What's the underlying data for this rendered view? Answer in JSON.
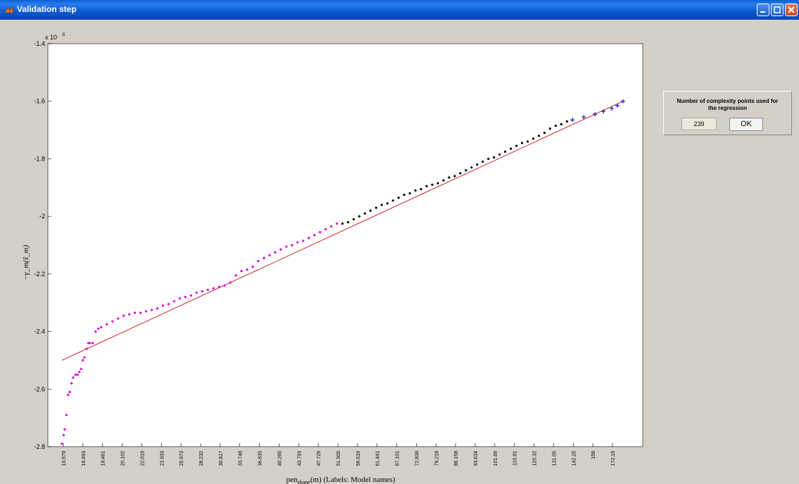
{
  "window": {
    "title": "Validation step",
    "buttons": [
      "minimize-icon",
      "maximize-icon",
      "close-icon"
    ]
  },
  "colors": {
    "titlebar": "#0a5fd6",
    "magenta_points": "#e000e0",
    "black_points": "#000000",
    "blue_points": "#1010c0",
    "regression_line": "#d02020"
  },
  "chart_data": {
    "type": "scatter",
    "y_exponent_label": "x 10",
    "y_exponent_power": "-5",
    "ylabel": "−γ_m(ŝ_m)",
    "xlabel_main": "pen",
    "xlabel_sub": "shape",
    "xlabel_rest": "(m) (Labels: Model names)",
    "ylim": [
      -2.8,
      -1.4
    ],
    "y_ticks": [
      "-1.4",
      "-1.6",
      "-1.8",
      "-2",
      "-2.2",
      "-2.4",
      "-2.6",
      "-2.8"
    ],
    "x_tick_labels": [
      "15.579",
      "16.993",
      "18.461",
      "20.102",
      "22.019",
      "23.933",
      "25.973",
      "28.232",
      "30.817",
      "33.748",
      "36.835",
      "40.265",
      "43.793",
      "47.729",
      "51.905",
      "56.616",
      "61.441",
      "67.101",
      "72.838",
      "79.218",
      "86.158",
      "93.634",
      "101.69",
      "110.81",
      "120.32",
      "131.05",
      "142.25",
      "158",
      "172.19"
    ],
    "regression_line": {
      "x_start": 0,
      "y_start": -2.5,
      "x_end": 1,
      "y_end": -1.6
    },
    "series": [
      {
        "marker": "point",
        "color": "#e000e0",
        "points": [
          [
            0.0,
            -2.79
          ],
          [
            0.003,
            -2.76
          ],
          [
            0.005,
            -2.74
          ],
          [
            0.008,
            -2.69
          ],
          [
            0.011,
            -2.62
          ],
          [
            0.014,
            -2.61
          ],
          [
            0.017,
            -2.58
          ],
          [
            0.02,
            -2.56
          ],
          [
            0.024,
            -2.55
          ],
          [
            0.028,
            -2.55
          ],
          [
            0.031,
            -2.54
          ],
          [
            0.034,
            -2.53
          ],
          [
            0.037,
            -2.5
          ],
          [
            0.04,
            -2.49
          ],
          [
            0.044,
            -2.46
          ],
          [
            0.047,
            -2.44
          ],
          [
            0.05,
            -2.44
          ],
          [
            0.055,
            -2.44
          ],
          [
            0.06,
            -2.4
          ],
          [
            0.065,
            -2.39
          ],
          [
            0.07,
            -2.385
          ],
          [
            0.08,
            -2.375
          ],
          [
            0.09,
            -2.365
          ],
          [
            0.1,
            -2.355
          ],
          [
            0.11,
            -2.345
          ],
          [
            0.12,
            -2.34
          ],
          [
            0.13,
            -2.335
          ],
          [
            0.14,
            -2.335
          ],
          [
            0.15,
            -2.33
          ],
          [
            0.16,
            -2.325
          ],
          [
            0.17,
            -2.32
          ],
          [
            0.18,
            -2.31
          ],
          [
            0.19,
            -2.305
          ],
          [
            0.2,
            -2.295
          ],
          [
            0.21,
            -2.285
          ],
          [
            0.22,
            -2.28
          ],
          [
            0.23,
            -2.275
          ],
          [
            0.24,
            -2.265
          ],
          [
            0.25,
            -2.26
          ],
          [
            0.26,
            -2.255
          ],
          [
            0.27,
            -2.25
          ],
          [
            0.28,
            -2.245
          ],
          [
            0.29,
            -2.24
          ],
          [
            0.3,
            -2.23
          ],
          [
            0.31,
            -2.205
          ],
          [
            0.32,
            -2.19
          ],
          [
            0.33,
            -2.185
          ],
          [
            0.34,
            -2.175
          ],
          [
            0.35,
            -2.155
          ],
          [
            0.36,
            -2.145
          ],
          [
            0.37,
            -2.135
          ],
          [
            0.38,
            -2.125
          ],
          [
            0.39,
            -2.115
          ],
          [
            0.4,
            -2.105
          ],
          [
            0.41,
            -2.1
          ],
          [
            0.42,
            -2.09
          ],
          [
            0.43,
            -2.085
          ],
          [
            0.44,
            -2.075
          ],
          [
            0.45,
            -2.065
          ],
          [
            0.46,
            -2.055
          ],
          [
            0.47,
            -2.045
          ],
          [
            0.48,
            -2.035
          ],
          [
            0.49,
            -2.025
          ]
        ]
      },
      {
        "marker": "point",
        "color": "#000000",
        "points": [
          [
            0.5,
            -2.025
          ],
          [
            0.51,
            -2.02
          ],
          [
            0.52,
            -2.01
          ],
          [
            0.53,
            -2.0
          ],
          [
            0.54,
            -1.99
          ],
          [
            0.55,
            -1.98
          ],
          [
            0.56,
            -1.97
          ],
          [
            0.57,
            -1.96
          ],
          [
            0.58,
            -1.955
          ],
          [
            0.59,
            -1.945
          ],
          [
            0.6,
            -1.935
          ],
          [
            0.61,
            -1.925
          ],
          [
            0.62,
            -1.92
          ],
          [
            0.63,
            -1.91
          ],
          [
            0.64,
            -1.905
          ],
          [
            0.65,
            -1.895
          ],
          [
            0.66,
            -1.89
          ],
          [
            0.67,
            -1.885
          ],
          [
            0.68,
            -1.875
          ],
          [
            0.69,
            -1.865
          ],
          [
            0.7,
            -1.86
          ],
          [
            0.71,
            -1.85
          ],
          [
            0.72,
            -1.84
          ],
          [
            0.73,
            -1.83
          ],
          [
            0.74,
            -1.82
          ],
          [
            0.75,
            -1.81
          ],
          [
            0.76,
            -1.8
          ],
          [
            0.77,
            -1.795
          ],
          [
            0.78,
            -1.785
          ],
          [
            0.79,
            -1.775
          ],
          [
            0.8,
            -1.765
          ],
          [
            0.81,
            -1.755
          ],
          [
            0.82,
            -1.745
          ],
          [
            0.83,
            -1.74
          ],
          [
            0.84,
            -1.73
          ],
          [
            0.85,
            -1.72
          ],
          [
            0.86,
            -1.71
          ],
          [
            0.87,
            -1.695
          ],
          [
            0.88,
            -1.685
          ],
          [
            0.89,
            -1.68
          ],
          [
            0.9,
            -1.67
          ]
        ]
      },
      {
        "marker": "plus",
        "color": "#1010c0",
        "points": [
          [
            0.91,
            -1.665
          ],
          [
            0.93,
            -1.655
          ],
          [
            0.95,
            -1.645
          ],
          [
            0.965,
            -1.635
          ],
          [
            0.98,
            -1.625
          ],
          [
            0.99,
            -1.615
          ],
          [
            1.0,
            -1.6
          ]
        ]
      }
    ]
  },
  "dialog": {
    "label_line1": "Number of complexity points used for",
    "label_line2": "the regression",
    "value": "239",
    "ok_label": "OK"
  }
}
